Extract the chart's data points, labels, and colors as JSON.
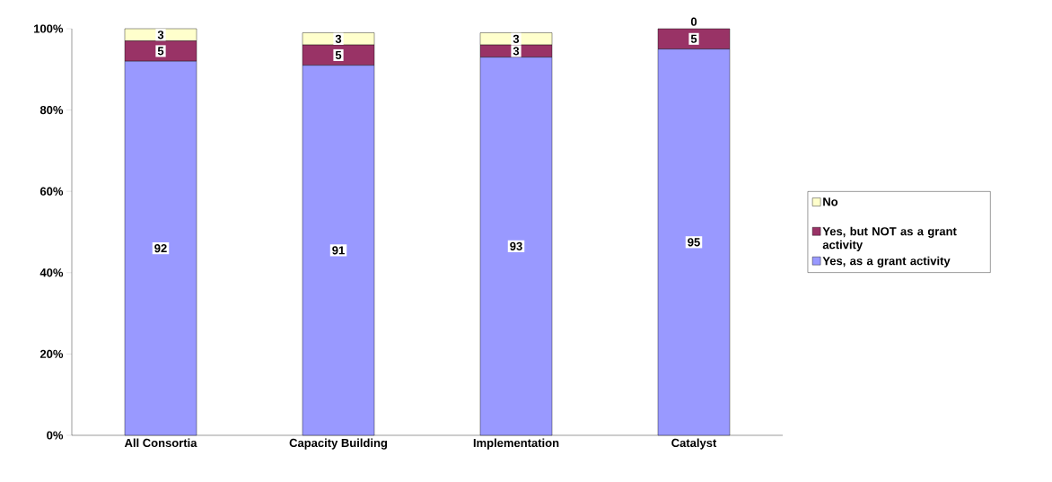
{
  "chart_data": {
    "type": "bar",
    "stacked": true,
    "categories": [
      "All Consortia",
      "Capacity  Building",
      "Implementation",
      "Catalyst"
    ],
    "series": [
      {
        "name": "Yes, as a grant activity",
        "color": "#9999ff",
        "values": [
          92,
          91,
          93,
          95
        ]
      },
      {
        "name": "Yes, but NOT as a grant activity",
        "color": "#993366",
        "values": [
          5,
          5,
          3,
          5
        ]
      },
      {
        "name": "No",
        "color": "#ffffcc",
        "values": [
          3,
          3,
          3,
          0
        ]
      }
    ],
    "ylim": [
      0,
      100
    ],
    "yticks": [
      {
        "value": 0,
        "label": "0%"
      },
      {
        "value": 20,
        "label": "20%"
      },
      {
        "value": 40,
        "label": "40%"
      },
      {
        "value": 60,
        "label": "60%"
      },
      {
        "value": 80,
        "label": "80%"
      },
      {
        "value": 100,
        "label": "100%"
      }
    ],
    "data_labels": true,
    "legend": "right",
    "grid": false
  }
}
